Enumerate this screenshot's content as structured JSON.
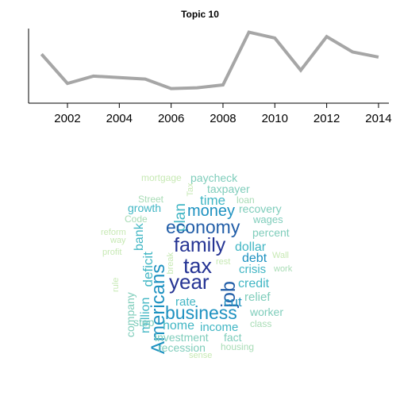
{
  "chart_data": [
    {
      "type": "line",
      "title": "Topic 10",
      "xlabel": "",
      "ylabel": "",
      "x": [
        2001,
        2002,
        2003,
        2004,
        2005,
        2006,
        2007,
        2008,
        2009,
        2010,
        2011,
        2012,
        2013,
        2014
      ],
      "y": [
        0.62,
        0.22,
        0.32,
        0.3,
        0.28,
        0.15,
        0.16,
        0.2,
        0.92,
        0.84,
        0.4,
        0.86,
        0.65,
        0.58
      ],
      "xticks": [
        "2002",
        "2004",
        "2006",
        "2008",
        "2010",
        "2012",
        "2014"
      ],
      "xlim": [
        2000.5,
        2014.4
      ],
      "ylim": [
        -0.05,
        0.97
      ],
      "line_color": "#a6a6a6",
      "grid": false,
      "legend": "none"
    },
    {
      "type": "wordcloud",
      "words": [
        {
          "text": "mortgage",
          "color": "#c7e9b4"
        },
        {
          "text": "paycheck",
          "color": "#7fcdbb"
        },
        {
          "text": "Tax",
          "color": "#c7e9b4"
        },
        {
          "text": "taxpayer",
          "color": "#7fcdbb"
        },
        {
          "text": "Street",
          "color": "#a8dcb5"
        },
        {
          "text": "time",
          "color": "#41b6c4"
        },
        {
          "text": "loan",
          "color": "#a8dcb5"
        },
        {
          "text": "plan",
          "color": "#41b6c4"
        },
        {
          "text": "growth",
          "color": "#41b6c4"
        },
        {
          "text": "money",
          "color": "#1d91c0"
        },
        {
          "text": "recovery",
          "color": "#7fcdbb"
        },
        {
          "text": "Code",
          "color": "#a8dcb5"
        },
        {
          "text": "wages",
          "color": "#7fcdbb"
        },
        {
          "text": "economy",
          "color": "#225ea8"
        },
        {
          "text": "reform",
          "color": "#c7e9b4"
        },
        {
          "text": "bank",
          "color": "#41b6c4"
        },
        {
          "text": "percent",
          "color": "#7fcdbb"
        },
        {
          "text": "way",
          "color": "#c7e9b4"
        },
        {
          "text": "deficit",
          "color": "#41b6c4"
        },
        {
          "text": "family",
          "color": "#253494"
        },
        {
          "text": "dollar",
          "color": "#41b6c4"
        },
        {
          "text": "profit",
          "color": "#c7e9b4"
        },
        {
          "text": "break",
          "color": "#c7e9b4"
        },
        {
          "text": "Wall",
          "color": "#c7e9b4"
        },
        {
          "text": "debt",
          "color": "#1d91c0"
        },
        {
          "text": "Americans",
          "color": "#1d91c0"
        },
        {
          "text": "rest",
          "color": "#c7e9b4"
        },
        {
          "text": "tax",
          "color": "#253494"
        },
        {
          "text": "crisis",
          "color": "#41b6c4"
        },
        {
          "text": "rule",
          "color": "#c7e9b4"
        },
        {
          "text": "work",
          "color": "#a8dcb5"
        },
        {
          "text": "million",
          "color": "#41b6c4"
        },
        {
          "text": "job",
          "color": "#225ea8"
        },
        {
          "text": "year",
          "color": "#253494"
        },
        {
          "text": "credit",
          "color": "#41b6c4"
        },
        {
          "text": "company",
          "color": "#7fcdbb"
        },
        {
          "text": "cut",
          "color": "#1d91c0"
        },
        {
          "text": "relief",
          "color": "#7fcdbb"
        },
        {
          "text": "rate",
          "color": "#41b6c4"
        },
        {
          "text": "business",
          "color": "#1d91c0"
        },
        {
          "text": "worker",
          "color": "#7fcdbb"
        },
        {
          "text": "step",
          "color": "#7fcdbb"
        },
        {
          "text": "home",
          "color": "#41b6c4"
        },
        {
          "text": "income",
          "color": "#41b6c4"
        },
        {
          "text": "class",
          "color": "#a8dcb5"
        },
        {
          "text": "investment",
          "color": "#7fcdbb"
        },
        {
          "text": "fact",
          "color": "#7fcdbb"
        },
        {
          "text": "recession",
          "color": "#7fcdbb"
        },
        {
          "text": "housing",
          "color": "#a8dcb5"
        },
        {
          "text": "sense",
          "color": "#c7e9b4"
        }
      ]
    }
  ]
}
